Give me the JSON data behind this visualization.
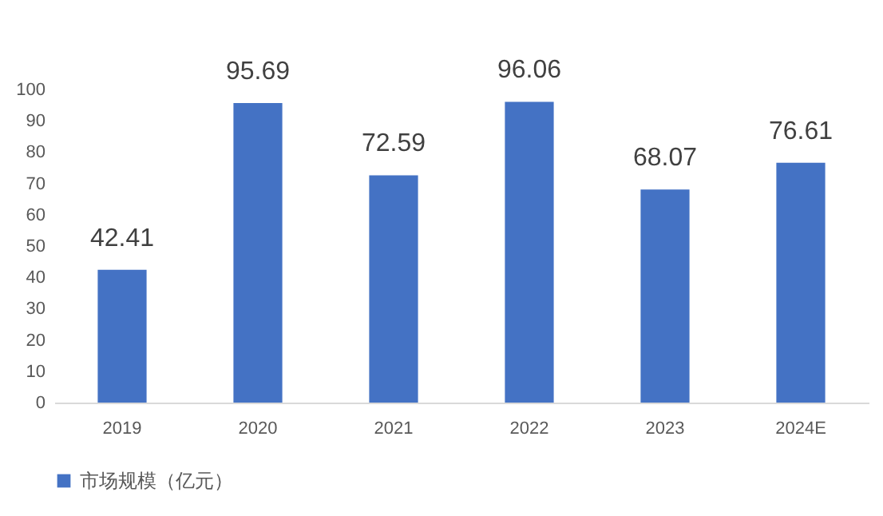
{
  "chart_data": {
    "type": "bar",
    "categories": [
      "2019",
      "2020",
      "2021",
      "2022",
      "2023",
      "2024E"
    ],
    "series": [
      {
        "name": "市场规模（亿元）",
        "color": "#4472c4",
        "values": [
          42.41,
          95.69,
          72.59,
          96.06,
          68.07,
          76.61
        ]
      }
    ],
    "ylim": [
      0,
      100
    ],
    "yticks": [
      0,
      10,
      20,
      30,
      40,
      50,
      60,
      70,
      80,
      90,
      100
    ],
    "grid": false,
    "legend": "bottom",
    "data_labels": true
  }
}
